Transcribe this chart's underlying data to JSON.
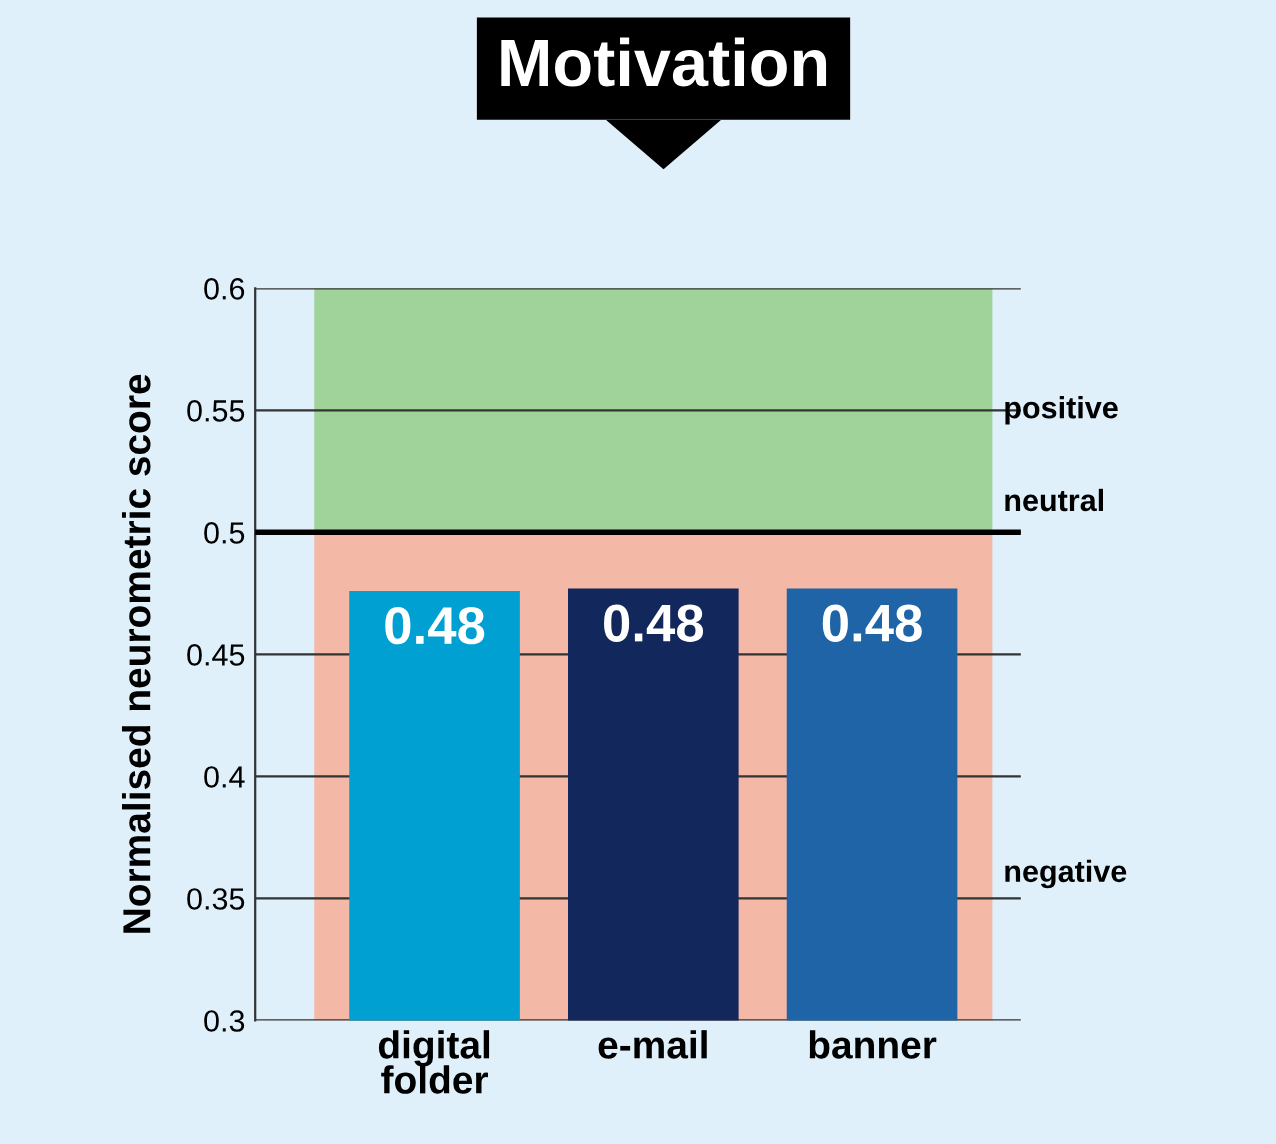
{
  "chart_data": {
    "type": "bar",
    "title": "Motivation",
    "ylabel": "Normalised neurometric score",
    "categories": [
      "digital\nfolder",
      "e-mail",
      "banner"
    ],
    "values": [
      0.476,
      0.477,
      0.477
    ],
    "value_labels": [
      "0.48",
      "0.48",
      "0.48"
    ],
    "colors": [
      "#00a0d2",
      "#12275c",
      "#1e64a6"
    ],
    "ylim": [
      0.3,
      0.6
    ],
    "yticks": [
      0.3,
      0.35,
      0.4,
      0.45,
      0.5,
      0.55,
      0.6
    ],
    "grid": "y",
    "bands": [
      {
        "axis": "y",
        "from": 0.5,
        "to": 0.6,
        "label": "positive",
        "color": "#9fd39a"
      },
      {
        "axis": "y",
        "from": 0.3,
        "to": 0.5,
        "label": "negative",
        "color": "#f3b8a6"
      }
    ],
    "ref_lines": [
      {
        "axis": "y",
        "value": 0.5,
        "label": "neutral",
        "color": "#000000"
      }
    ]
  }
}
